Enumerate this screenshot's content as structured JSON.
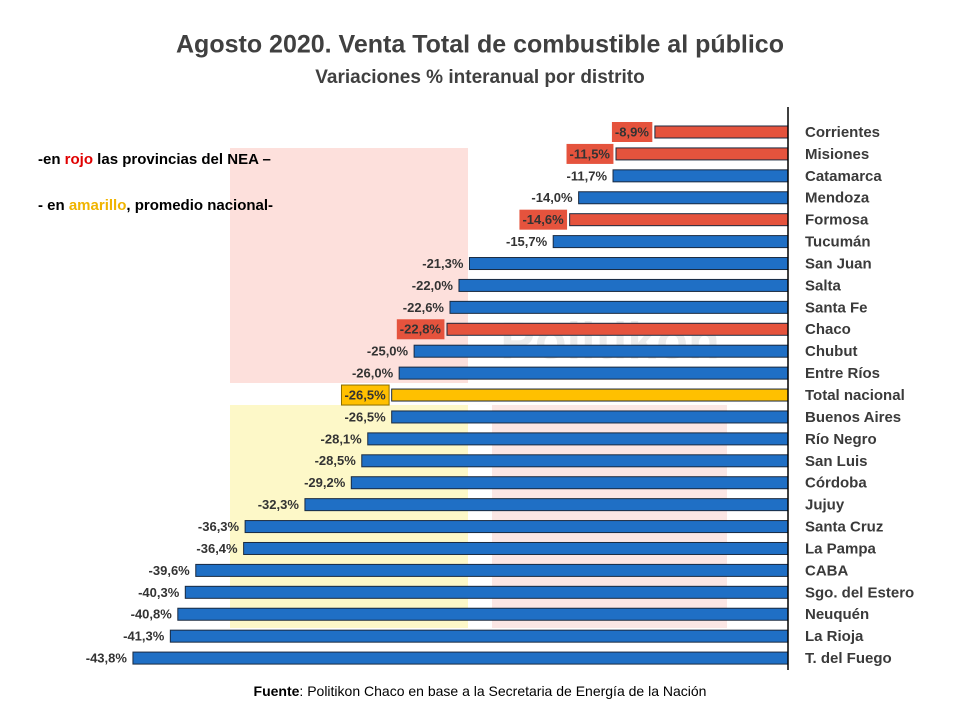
{
  "chart_data": {
    "type": "hbar",
    "title": "Agosto 2020. Venta Total de combustible al público",
    "subtitle": "Variaciones %  interanual por distrito",
    "categories": [
      "Corrientes",
      "Misiones",
      "Catamarca",
      "Mendoza",
      "Formosa",
      "Tucumán",
      "San Juan",
      "Salta",
      "Santa Fe",
      "Chaco",
      "Chubut",
      "Entre Ríos",
      "Total nacional",
      "Buenos Aires",
      "Río Negro",
      "San Luis",
      "Córdoba",
      "Jujuy",
      "Santa Cruz",
      "La Pampa",
      "CABA",
      "Sgo. del Estero",
      "Neuquén",
      "La Rioja",
      "T. del Fuego"
    ],
    "values": [
      -8.9,
      -11.5,
      -11.7,
      -14.0,
      -14.6,
      -15.7,
      -21.3,
      -22.0,
      -22.6,
      -22.8,
      -25.0,
      -26.0,
      -26.5,
      -26.5,
      -28.1,
      -28.5,
      -29.2,
      -32.3,
      -36.3,
      -36.4,
      -39.6,
      -40.3,
      -40.8,
      -41.3,
      -43.8
    ],
    "value_labels": [
      "-8,9%",
      "-11,5%",
      "-11,7%",
      "-14,0%",
      "-14,6%",
      "-15,7%",
      "-21,3%",
      "-22,0%",
      "-22,6%",
      "-22,8%",
      "-25,0%",
      "-26,0%",
      "-26,5%",
      "-26,5%",
      "-28,1%",
      "-28,5%",
      "-29,2%",
      "-32,3%",
      "-36,3%",
      "-36,4%",
      "-39,6%",
      "-40,3%",
      "-40,8%",
      "-41,3%",
      "-43,8%"
    ],
    "colors": [
      "#e5533d",
      "#e5533d",
      "#1f6fc5",
      "#1f6fc5",
      "#e5533d",
      "#1f6fc5",
      "#1f6fc5",
      "#1f6fc5",
      "#1f6fc5",
      "#e5533d",
      "#1f6fc5",
      "#1f6fc5",
      "#ffc000",
      "#1f6fc5",
      "#1f6fc5",
      "#1f6fc5",
      "#1f6fc5",
      "#1f6fc5",
      "#1f6fc5",
      "#1f6fc5",
      "#1f6fc5",
      "#1f6fc5",
      "#1f6fc5",
      "#1f6fc5",
      "#1f6fc5"
    ],
    "xlim": [
      -45,
      0
    ],
    "annotations": [
      {
        "parts": [
          "-en ",
          "rojo",
          " las provincias del NEA –"
        ],
        "highlight": "#e00000"
      },
      {
        "parts": [
          "- en ",
          "amarillo",
          ", promedio nacional-"
        ],
        "highlight": "#f0b400"
      }
    ],
    "watermark": "Politikon",
    "source": {
      "label": "Fuente",
      "text": ": Politikon Chaco en base a la Secretaria de Energía de la Nación"
    }
  }
}
